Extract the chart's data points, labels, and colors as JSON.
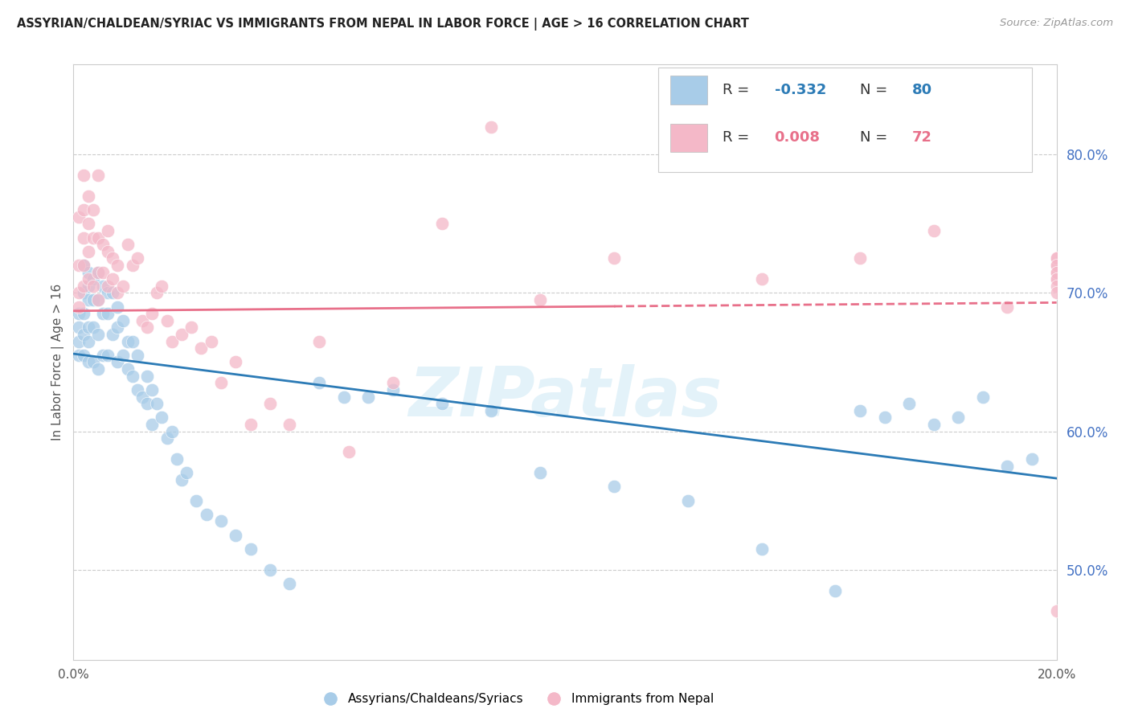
{
  "title": "ASSYRIAN/CHALDEAN/SYRIAC VS IMMIGRANTS FROM NEPAL IN LABOR FORCE | AGE > 16 CORRELATION CHART",
  "source_text": "Source: ZipAtlas.com",
  "ylabel": "In Labor Force | Age > 16",
  "blue_color": "#a8cce8",
  "pink_color": "#f4b8c8",
  "blue_line_color": "#2c7bb6",
  "pink_line_color": "#e8708a",
  "R_blue": -0.332,
  "N_blue": 80,
  "R_pink": 0.008,
  "N_pink": 72,
  "legend_label_blue": "Assyrians/Chaldeans/Syriacs",
  "legend_label_pink": "Immigrants from Nepal",
  "watermark": "ZIPatlas",
  "xlim": [
    0.0,
    0.2
  ],
  "ylim": [
    0.435,
    0.865
  ],
  "y_ticks_right": [
    0.5,
    0.6,
    0.7,
    0.8
  ],
  "y_tick_labels_right": [
    "50.0%",
    "60.0%",
    "70.0%",
    "80.0%"
  ],
  "blue_line_x0": 0.0,
  "blue_line_y0": 0.656,
  "blue_line_x1": 0.2,
  "blue_line_y1": 0.566,
  "pink_line_x0": 0.0,
  "pink_line_y0": 0.687,
  "pink_line_x1": 0.2,
  "pink_line_y1": 0.693,
  "pink_line_solid_end": 0.11,
  "blue_scatter_x": [
    0.001,
    0.001,
    0.001,
    0.001,
    0.002,
    0.002,
    0.002,
    0.002,
    0.002,
    0.003,
    0.003,
    0.003,
    0.003,
    0.003,
    0.003,
    0.004,
    0.004,
    0.004,
    0.004,
    0.005,
    0.005,
    0.005,
    0.005,
    0.006,
    0.006,
    0.006,
    0.007,
    0.007,
    0.007,
    0.008,
    0.008,
    0.009,
    0.009,
    0.009,
    0.01,
    0.01,
    0.011,
    0.011,
    0.012,
    0.012,
    0.013,
    0.013,
    0.014,
    0.015,
    0.015,
    0.016,
    0.016,
    0.017,
    0.018,
    0.019,
    0.02,
    0.021,
    0.022,
    0.023,
    0.025,
    0.027,
    0.03,
    0.033,
    0.036,
    0.04,
    0.044,
    0.05,
    0.055,
    0.06,
    0.065,
    0.075,
    0.085,
    0.095,
    0.11,
    0.125,
    0.14,
    0.155,
    0.16,
    0.165,
    0.17,
    0.175,
    0.18,
    0.185,
    0.19,
    0.195
  ],
  "blue_scatter_y": [
    0.685,
    0.675,
    0.665,
    0.655,
    0.72,
    0.7,
    0.685,
    0.67,
    0.655,
    0.715,
    0.705,
    0.695,
    0.675,
    0.665,
    0.65,
    0.71,
    0.695,
    0.675,
    0.65,
    0.715,
    0.695,
    0.67,
    0.645,
    0.705,
    0.685,
    0.655,
    0.7,
    0.685,
    0.655,
    0.7,
    0.67,
    0.69,
    0.675,
    0.65,
    0.68,
    0.655,
    0.665,
    0.645,
    0.665,
    0.64,
    0.655,
    0.63,
    0.625,
    0.64,
    0.62,
    0.63,
    0.605,
    0.62,
    0.61,
    0.595,
    0.6,
    0.58,
    0.565,
    0.57,
    0.55,
    0.54,
    0.535,
    0.525,
    0.515,
    0.5,
    0.49,
    0.635,
    0.625,
    0.625,
    0.63,
    0.62,
    0.615,
    0.57,
    0.56,
    0.55,
    0.515,
    0.485,
    0.615,
    0.61,
    0.62,
    0.605,
    0.61,
    0.625,
    0.575,
    0.58
  ],
  "pink_scatter_x": [
    0.001,
    0.001,
    0.001,
    0.001,
    0.002,
    0.002,
    0.002,
    0.002,
    0.002,
    0.003,
    0.003,
    0.003,
    0.003,
    0.004,
    0.004,
    0.004,
    0.005,
    0.005,
    0.005,
    0.005,
    0.006,
    0.006,
    0.007,
    0.007,
    0.007,
    0.008,
    0.008,
    0.009,
    0.009,
    0.01,
    0.011,
    0.012,
    0.013,
    0.014,
    0.015,
    0.016,
    0.017,
    0.018,
    0.019,
    0.02,
    0.022,
    0.024,
    0.026,
    0.028,
    0.03,
    0.033,
    0.036,
    0.04,
    0.044,
    0.05,
    0.056,
    0.065,
    0.075,
    0.085,
    0.095,
    0.11,
    0.125,
    0.14,
    0.16,
    0.175,
    0.19,
    0.2,
    0.205,
    0.21,
    0.215,
    0.22,
    0.225,
    0.23,
    0.235,
    0.24,
    0.245,
    0.25
  ],
  "pink_scatter_y": [
    0.7,
    0.72,
    0.69,
    0.755,
    0.785,
    0.76,
    0.74,
    0.72,
    0.705,
    0.71,
    0.73,
    0.75,
    0.77,
    0.705,
    0.74,
    0.76,
    0.785,
    0.74,
    0.715,
    0.695,
    0.715,
    0.735,
    0.705,
    0.73,
    0.745,
    0.71,
    0.725,
    0.7,
    0.72,
    0.705,
    0.735,
    0.72,
    0.725,
    0.68,
    0.675,
    0.685,
    0.7,
    0.705,
    0.68,
    0.665,
    0.67,
    0.675,
    0.66,
    0.665,
    0.635,
    0.65,
    0.605,
    0.62,
    0.605,
    0.665,
    0.585,
    0.635,
    0.75,
    0.82,
    0.695,
    0.725,
    0.805,
    0.71,
    0.725,
    0.745,
    0.69,
    0.725,
    0.72,
    0.715,
    0.47,
    0.71,
    0.725,
    0.72,
    0.715,
    0.71,
    0.705,
    0.7
  ]
}
